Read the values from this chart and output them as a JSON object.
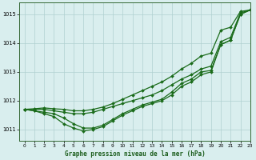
{
  "xlabel": "Graphe pression niveau de la mer (hPa)",
  "xlim": [
    -0.5,
    23
  ],
  "ylim": [
    1010.6,
    1015.4
  ],
  "yticks": [
    1011,
    1012,
    1013,
    1014,
    1015
  ],
  "xticks": [
    0,
    1,
    2,
    3,
    4,
    5,
    6,
    7,
    8,
    9,
    10,
    11,
    12,
    13,
    14,
    15,
    16,
    17,
    18,
    19,
    20,
    21,
    22,
    23
  ],
  "background_color": "#d9eeee",
  "grid_color": "#b0d0d0",
  "line_color": "#1a6b1a",
  "upper": [
    1011.7,
    1011.7,
    1011.7,
    1011.65,
    1011.6,
    1011.55,
    1011.55,
    1011.6,
    1011.7,
    1011.8,
    1011.9,
    1012.0,
    1012.1,
    1012.2,
    1012.35,
    1012.55,
    1012.75,
    1012.9,
    1013.1,
    1013.2,
    1014.05,
    1014.2,
    1015.05,
    1015.15
  ],
  "middle": [
    1011.7,
    1011.65,
    1011.6,
    1011.55,
    1011.4,
    1011.2,
    1011.05,
    1011.05,
    1011.15,
    1011.35,
    1011.55,
    1011.7,
    1011.85,
    1011.95,
    1012.05,
    1012.3,
    1012.6,
    1012.75,
    1013.0,
    1013.05,
    1013.95,
    1014.1,
    1015.0,
    1015.15
  ],
  "lower": [
    1011.7,
    1011.65,
    1011.55,
    1011.45,
    1011.2,
    1011.05,
    1010.95,
    1011.0,
    1011.1,
    1011.3,
    1011.5,
    1011.65,
    1011.8,
    1011.9,
    1012.0,
    1012.2,
    1012.5,
    1012.65,
    1012.9,
    1013.0,
    1013.95,
    1014.1,
    1015.0,
    1015.15
  ],
  "fan_upper": [
    1011.7,
    1011.72,
    1011.75,
    1011.72,
    1011.7,
    1011.65,
    1011.65,
    1011.7,
    1011.78,
    1011.9,
    1012.05,
    1012.2,
    1012.35,
    1012.5,
    1012.65,
    1012.85,
    1013.1,
    1013.3,
    1013.55,
    1013.65,
    1014.45,
    1014.55,
    1015.1,
    1015.15
  ]
}
